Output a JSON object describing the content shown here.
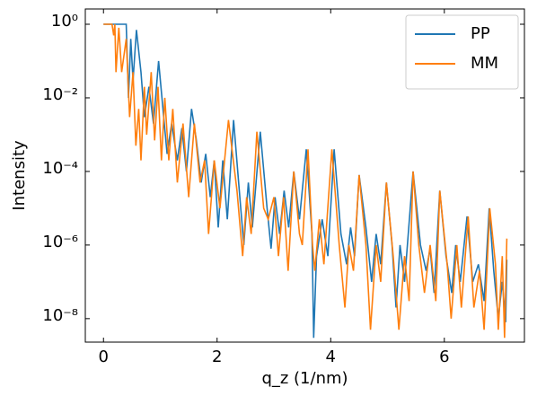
{
  "chart_data": {
    "type": "line",
    "xlabel": "q_z (1/nm)",
    "ylabel": "Intensity",
    "xlim": [
      -0.32,
      7.41
    ],
    "xticks": [
      0,
      2,
      4,
      6
    ],
    "ylim": [
      2.3e-09,
      2.6
    ],
    "yscale": "log",
    "yticks": [
      {
        "value": 1,
        "label": "10⁰"
      },
      {
        "value": 0.01,
        "label": "10⁻²"
      },
      {
        "value": 0.0001,
        "label": "10⁻⁴"
      },
      {
        "value": 1e-06,
        "label": "10⁻⁶"
      },
      {
        "value": 1e-08,
        "label": "10⁻⁸"
      }
    ],
    "legend": "upper right",
    "series": [
      {
        "name": "PP",
        "color": "#1f77b4",
        "x": [
          0,
          0.3,
          0.4,
          0.44,
          0.48,
          0.52,
          0.58,
          0.66,
          0.72,
          0.8,
          0.88,
          0.97,
          1.06,
          1.12,
          1.2,
          1.3,
          1.38,
          1.46,
          1.55,
          1.63,
          1.72,
          1.8,
          1.88,
          1.95,
          2.02,
          2.1,
          2.18,
          2.29,
          2.4,
          2.47,
          2.55,
          2.62,
          2.76,
          2.88,
          2.95,
          3.02,
          3.1,
          3.18,
          3.26,
          3.35,
          3.45,
          3.57,
          3.67,
          3.7,
          3.75,
          3.85,
          3.95,
          4.06,
          4.18,
          4.28,
          4.35,
          4.42,
          4.5,
          4.62,
          4.72,
          4.8,
          4.88,
          4.98,
          5.08,
          5.15,
          5.22,
          5.3,
          5.45,
          5.58,
          5.68,
          5.75,
          5.82,
          5.92,
          6.03,
          6.13,
          6.2,
          6.28,
          6.4,
          6.5,
          6.6,
          6.7,
          6.79,
          6.87,
          6.95,
          7.02,
          7.08,
          7.1
        ],
        "values": [
          1,
          1,
          1,
          0.01,
          0.4,
          0.03,
          0.7,
          0.05,
          0.003,
          0.02,
          0.002,
          0.1,
          0.003,
          0.0003,
          0.002,
          0.0002,
          0.0015,
          0.0001,
          0.005,
          0.0008,
          5e-05,
          0.0003,
          2e-05,
          0.0002,
          3e-06,
          0.0002,
          5e-06,
          0.0025,
          2e-05,
          1e-06,
          5e-05,
          3e-06,
          0.0012,
          1e-05,
          8e-07,
          2e-05,
          2e-06,
          3e-05,
          3e-06,
          0.0001,
          5e-06,
          0.0004,
          2e-06,
          3e-09,
          5e-07,
          5e-06,
          5e-07,
          0.0004,
          2e-06,
          3e-07,
          3e-06,
          5e-07,
          8e-05,
          3e-06,
          1e-07,
          2e-06,
          3e-07,
          5e-05,
          1e-06,
          2e-08,
          1e-06,
          1e-07,
          0.0001,
          1e-06,
          2e-07,
          8e-07,
          5e-08,
          3e-05,
          5e-07,
          5e-08,
          1e-06,
          1e-07,
          6e-06,
          1e-07,
          3e-07,
          3e-08,
          1e-05,
          2e-07,
          1e-08,
          1e-07,
          8e-09,
          4e-07
        ]
      },
      {
        "name": "MM",
        "color": "#ff7f0e",
        "x": [
          0,
          0.15,
          0.18,
          0.2,
          0.22,
          0.27,
          0.32,
          0.4,
          0.46,
          0.52,
          0.57,
          0.62,
          0.66,
          0.72,
          0.76,
          0.84,
          0.9,
          0.96,
          1.02,
          1.08,
          1.15,
          1.22,
          1.3,
          1.4,
          1.5,
          1.6,
          1.7,
          1.78,
          1.85,
          1.95,
          2.05,
          2.2,
          2.35,
          2.45,
          2.52,
          2.6,
          2.7,
          2.82,
          2.9,
          3.0,
          3.08,
          3.17,
          3.25,
          3.35,
          3.45,
          3.5,
          3.6,
          3.68,
          3.72,
          3.8,
          3.88,
          4.02,
          4.15,
          4.25,
          4.32,
          4.4,
          4.5,
          4.62,
          4.7,
          4.8,
          4.88,
          4.98,
          5.1,
          5.2,
          5.3,
          5.38,
          5.45,
          5.55,
          5.65,
          5.75,
          5.85,
          5.92,
          6.05,
          6.12,
          6.22,
          6.3,
          6.42,
          6.52,
          6.62,
          6.7,
          6.8,
          6.9,
          6.95,
          7.02,
          7.06,
          7.1
        ],
        "values": [
          1,
          1,
          0.5,
          1,
          0.05,
          0.8,
          0.05,
          0.4,
          0.003,
          0.05,
          0.0005,
          0.005,
          0.0002,
          0.02,
          0.001,
          0.05,
          0.0007,
          0.02,
          0.0002,
          0.01,
          0.0002,
          0.005,
          5e-05,
          0.002,
          2e-05,
          0.002,
          5e-05,
          0.0002,
          2e-06,
          0.0002,
          1e-05,
          0.0025,
          3e-05,
          5e-07,
          2e-05,
          2e-06,
          0.0012,
          1e-05,
          5e-06,
          2e-05,
          5e-07,
          2e-05,
          2e-07,
          0.0001,
          2e-06,
          1e-06,
          0.0004,
          1e-06,
          2e-07,
          5e-06,
          3e-07,
          0.0004,
          1e-06,
          2e-08,
          1e-06,
          2e-07,
          8e-05,
          1e-06,
          5e-09,
          1e-06,
          1e-07,
          5e-05,
          5e-07,
          5e-09,
          5e-07,
          3e-08,
          0.0001,
          1e-06,
          5e-08,
          1e-06,
          3e-08,
          3e-05,
          3e-07,
          1e-08,
          1e-06,
          2e-08,
          6e-06,
          2e-08,
          2e-07,
          5e-09,
          1e-05,
          3e-07,
          5e-09,
          5e-07,
          3e-09,
          1.5e-06
        ]
      }
    ]
  }
}
